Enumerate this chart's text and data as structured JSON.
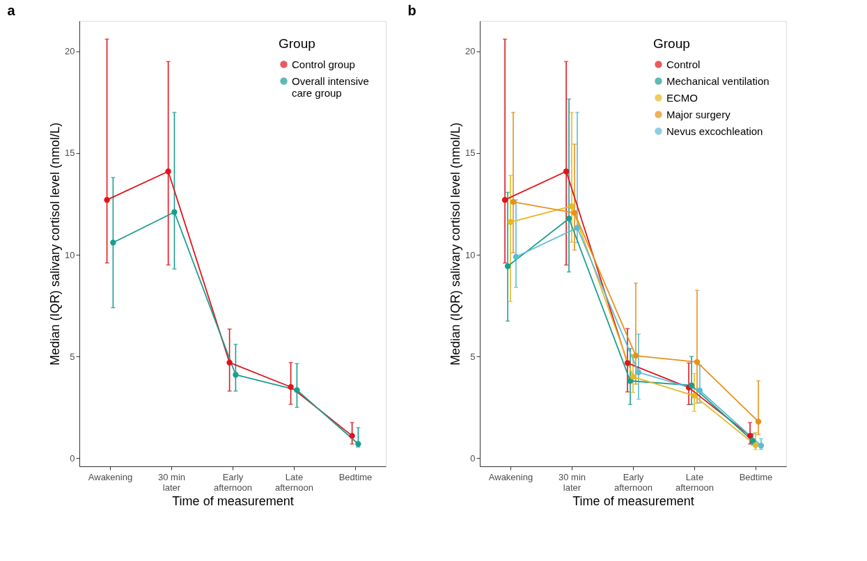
{
  "chart_data": [
    {
      "type": "line",
      "title": "a",
      "xlabel": "Time of measurement",
      "ylabel": "Median (IQR) salivary cortisol level (nmol/L)",
      "legend_title": "Group",
      "legend": "top right",
      "grid": false,
      "marker": "circle",
      "line_style": "solid",
      "categories": [
        "Awakening",
        "30 min\nlater",
        "Early\nafternoon",
        "Late\nafternoon",
        "Bedtime"
      ],
      "ylim": [
        -0.4,
        21.5
      ],
      "yticks": [
        0,
        5,
        10,
        15,
        20
      ],
      "series": [
        {
          "name": "Control group",
          "color": "#e0151c",
          "values": [
            12.7,
            14.1,
            4.7,
            3.5,
            1.1
          ],
          "errors": [
            [
              9.6,
              20.6
            ],
            [
              9.5,
              19.5
            ],
            [
              3.3,
              6.35
            ],
            [
              2.65,
              4.7
            ],
            [
              0.7,
              1.75
            ]
          ]
        },
        {
          "name": "Overall intensive\ncare group",
          "color": "#1a9e8f",
          "values": [
            10.6,
            12.1,
            4.1,
            3.35,
            0.7
          ],
          "errors": [
            [
              7.4,
              13.8
            ],
            [
              9.3,
              17.0
            ],
            [
              3.3,
              5.6
            ],
            [
              2.5,
              4.65
            ],
            [
              0.55,
              1.5
            ]
          ]
        }
      ]
    },
    {
      "type": "line",
      "title": "b",
      "xlabel": "Time of measurement",
      "ylabel": "Median (IQR) salivary cortisol level (nmol/L)",
      "legend_title": "Group",
      "legend": "top right",
      "grid": false,
      "marker": "circle",
      "line_style": "solid",
      "categories": [
        "Awakening",
        "30 min\nlater",
        "Early\nafternoon",
        "Late\nafternoon",
        "Bedtime"
      ],
      "ylim": [
        -0.4,
        21.5
      ],
      "yticks": [
        0,
        5,
        10,
        15,
        20
      ],
      "series": [
        {
          "name": "Control",
          "color": "#e0151c",
          "values": [
            12.7,
            14.1,
            4.68,
            3.47,
            1.1
          ],
          "errors": [
            [
              9.6,
              20.6
            ],
            [
              9.5,
              19.5
            ],
            [
              3.26,
              6.37
            ],
            [
              2.64,
              4.68
            ],
            [
              0.7,
              1.75
            ]
          ]
        },
        {
          "name": "Mechanical ventilation",
          "color": "#1a9e8f",
          "values": [
            9.44,
            11.78,
            3.8,
            3.58,
            0.85
          ],
          "errors": [
            [
              6.74,
              13.07
            ],
            [
              9.16,
              17.66
            ],
            [
              2.64,
              5.4
            ],
            [
              2.64,
              5.0
            ],
            [
              0.65,
              1.2
            ]
          ]
        },
        {
          "name": "ECMO",
          "color": "#e8b820",
          "values": [
            11.61,
            12.39,
            4.0,
            3.07,
            0.64
          ],
          "errors": [
            [
              7.7,
              13.9
            ],
            [
              10.62,
              17.0
            ],
            [
              3.23,
              5.1
            ],
            [
              2.3,
              4.16
            ],
            [
              0.43,
              1.26
            ]
          ]
        },
        {
          "name": "Major surgery",
          "color": "#e8911a",
          "values": [
            12.6,
            12.06,
            5.04,
            4.73,
            1.8
          ],
          "errors": [
            [
              10.1,
              17.0
            ],
            [
              10.23,
              15.44
            ],
            [
              3.64,
              8.61
            ],
            [
              2.71,
              8.25
            ],
            [
              1.16,
              3.8
            ]
          ]
        },
        {
          "name": "Nevus excochleation",
          "color": "#5bbcd6",
          "values": [
            9.9,
            11.33,
            4.22,
            3.33,
            0.62
          ],
          "errors": [
            [
              8.4,
              12.7
            ],
            [
              10.6,
              17.0
            ],
            [
              2.9,
              6.1
            ],
            [
              2.71,
              4.57
            ],
            [
              0.43,
              0.96
            ]
          ]
        }
      ]
    }
  ]
}
